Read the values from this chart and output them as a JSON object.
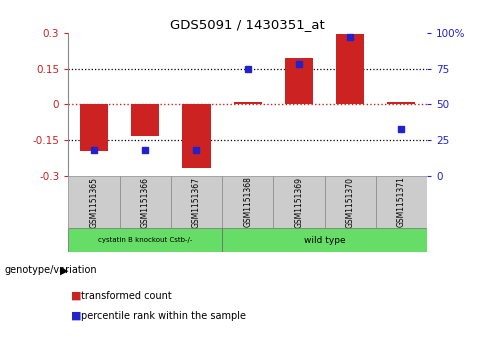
{
  "title": "GDS5091 / 1430351_at",
  "samples": [
    "GSM1151365",
    "GSM1151366",
    "GSM1151367",
    "GSM1151368",
    "GSM1151369",
    "GSM1151370",
    "GSM1151371"
  ],
  "bar_values": [
    -0.195,
    -0.13,
    -0.265,
    0.01,
    0.195,
    0.295,
    0.01
  ],
  "percentile_values": [
    18,
    18,
    18,
    75,
    78,
    97,
    33
  ],
  "ylim_left": [
    -0.3,
    0.3
  ],
  "ylim_right": [
    0,
    100
  ],
  "yticks_left": [
    -0.3,
    -0.15,
    0,
    0.15,
    0.3
  ],
  "yticks_right": [
    0,
    25,
    50,
    75,
    100
  ],
  "bar_color": "#cc2222",
  "dot_color": "#2222cc",
  "hline_color": "#cc2222",
  "dotted_color": "#000000",
  "group0_label": "cystatin B knockout Cstb-/-",
  "group0_indices": [
    0,
    1,
    2
  ],
  "group1_label": "wild type",
  "group1_indices": [
    3,
    4,
    5,
    6
  ],
  "group_color": "#66dd66",
  "sample_cell_color": "#cccccc",
  "genotype_label": "genotype/variation",
  "legend_red_label": "transformed count",
  "legend_blue_label": "percentile rank within the sample",
  "background_color": "#ffffff",
  "tick_label_color_left": "#cc2222",
  "tick_label_color_right": "#2222cc"
}
